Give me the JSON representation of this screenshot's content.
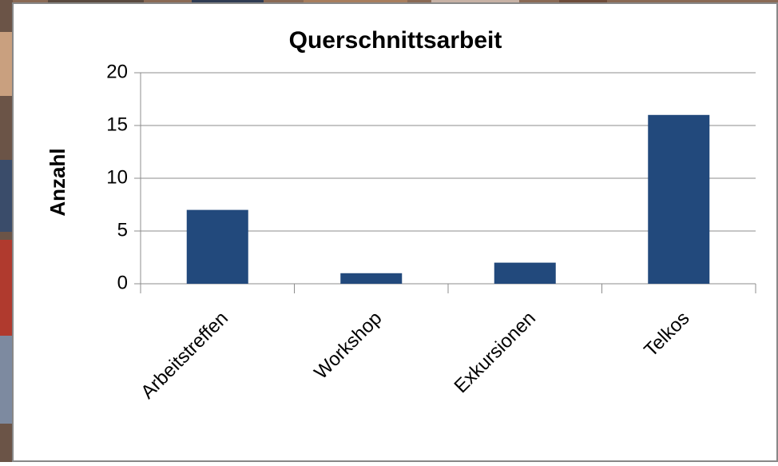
{
  "chart_data": {
    "type": "bar",
    "title": "Querschnittsarbeit",
    "y_label": "Anzahl",
    "categories": [
      "Arbeitstreffen",
      "Workshop",
      "Exkursionen",
      "Telkos"
    ],
    "values": [
      7,
      1,
      2,
      16
    ],
    "color": "#22497c",
    "ylim": [
      0,
      20
    ],
    "yticks": [
      0,
      5,
      10,
      15,
      20
    ],
    "grid": true
  }
}
